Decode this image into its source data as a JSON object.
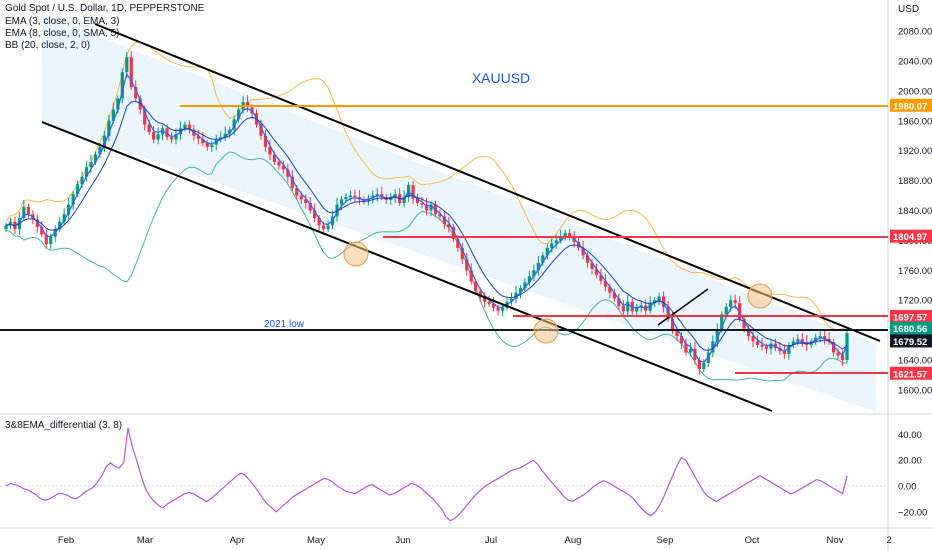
{
  "legend": {
    "symbol": "Gold Spot / U.S. Dollar, 1D, PEPPERSTONE",
    "ema3": "EMA (3, close, 0, EMA, 3)",
    "ema8": "EMA (8, close, 0, SMA, 5)",
    "bb": "BB (20, close, 2, 0)",
    "indicator": "3&8EMA_differential (3, 8)"
  },
  "chart_data": {
    "type": "candlestick",
    "title": "XAUUSD",
    "currency": "USD",
    "ylim": [
      1570,
      2120
    ],
    "y_ticks": [
      1600,
      1640,
      1680,
      1720,
      1760,
      1800,
      1840,
      1880,
      1920,
      1960,
      2000,
      2040,
      2080
    ],
    "y_tick_labels": [
      "1600.00",
      "1640.00",
      "1680.00",
      "1720.00",
      "1760.00",
      "1800.00",
      "1840.00",
      "1880.00",
      "1920.00",
      "1960.00",
      "2000.00",
      "2040.00",
      "2080.00"
    ],
    "x_tick_labels": [
      "Feb",
      "Mar",
      "Apr",
      "May",
      "Jun",
      "Jul",
      "Aug",
      "Sep",
      "Oct",
      "Nov",
      "2"
    ],
    "price_levels": [
      {
        "label": "1980.07",
        "value": 1980.07,
        "color": "#f59b00"
      },
      {
        "label": "1804.97",
        "value": 1804.97,
        "color": "#f23645"
      },
      {
        "label": "1697.57",
        "value": 1697.57,
        "color": "#f23645"
      },
      {
        "label": "1680.56",
        "value": 1680.56,
        "color": "#089981"
      },
      {
        "label": "1679.52",
        "value": 1679.52,
        "color": "#131722"
      },
      {
        "label": "1621.57",
        "value": 1621.57,
        "color": "#f23645"
      }
    ],
    "annotations": [
      "2021 low"
    ],
    "close_series": [
      1820,
      1825,
      1815,
      1830,
      1845,
      1835,
      1828,
      1818,
      1808,
      1795,
      1805,
      1815,
      1825,
      1835,
      1848,
      1862,
      1875,
      1885,
      1898,
      1905,
      1915,
      1925,
      1940,
      1960,
      1975,
      1990,
      2025,
      2045,
      2005,
      1990,
      1975,
      1955,
      1945,
      1935,
      1942,
      1950,
      1938,
      1935,
      1942,
      1950,
      1955,
      1948,
      1940,
      1936,
      1930,
      1925,
      1928,
      1935,
      1938,
      1943,
      1948,
      1962,
      1975,
      1985,
      1978,
      1970,
      1955,
      1940,
      1925,
      1915,
      1905,
      1900,
      1895,
      1885,
      1870,
      1860,
      1855,
      1850,
      1840,
      1830,
      1820,
      1815,
      1820,
      1832,
      1848,
      1855,
      1858,
      1860,
      1858,
      1855,
      1852,
      1856,
      1860,
      1862,
      1858,
      1854,
      1858,
      1862,
      1850,
      1858,
      1874,
      1856,
      1850,
      1848,
      1840,
      1848,
      1835,
      1832,
      1822,
      1818,
      1802,
      1790,
      1775,
      1760,
      1745,
      1732,
      1724,
      1718,
      1715,
      1710,
      1706,
      1710,
      1718,
      1722,
      1730,
      1736,
      1744,
      1752,
      1760,
      1770,
      1780,
      1790,
      1796,
      1800,
      1805,
      1810,
      1806,
      1798,
      1790,
      1780,
      1770,
      1762,
      1754,
      1746,
      1738,
      1730,
      1722,
      1712,
      1705,
      1718,
      1705,
      1710,
      1713,
      1706,
      1716,
      1720,
      1725,
      1711,
      1695,
      1680,
      1672,
      1662,
      1650,
      1655,
      1640,
      1628,
      1636,
      1650,
      1665,
      1680,
      1701,
      1711,
      1720,
      1716,
      1695,
      1682,
      1672,
      1665,
      1660,
      1658,
      1655,
      1662,
      1656,
      1652,
      1648,
      1660,
      1665,
      1668,
      1664,
      1660,
      1665,
      1670,
      1672,
      1668,
      1664,
      1650,
      1646,
      1640,
      1676
    ]
  },
  "indicator_data": {
    "name": "3&8EMA_differential (3, 8)",
    "ylim": [
      -30,
      50
    ],
    "y_ticks": [
      -20,
      0,
      20,
      40
    ],
    "y_tick_labels": [
      "−20.00",
      "0.00",
      "20.00",
      "40.00"
    ],
    "values": [
      0,
      2,
      1,
      0,
      -2,
      -3,
      -5,
      -7,
      -10,
      -11,
      -10,
      -8,
      -6,
      -6,
      -7,
      -9,
      -10,
      -8,
      -5,
      -3,
      -1,
      3,
      8,
      15,
      18,
      15,
      14,
      18,
      45,
      30,
      20,
      8,
      -2,
      -8,
      -12,
      -15,
      -17,
      -14,
      -12,
      -10,
      -8,
      -6,
      -5,
      -6,
      -8,
      -10,
      -12,
      -10,
      -7,
      -4,
      -1,
      2,
      5,
      8,
      10,
      8,
      4,
      0,
      -5,
      -10,
      -14,
      -17,
      -20,
      -17,
      -14,
      -11,
      -8,
      -6,
      -4,
      -2,
      0,
      2,
      4,
      6,
      5,
      3,
      0,
      -2,
      -4,
      -5,
      -6,
      -4,
      -2,
      0,
      1,
      -1,
      -3,
      -5,
      -7,
      -6,
      -4,
      -2,
      0,
      2,
      1,
      -1,
      -4,
      -7,
      -10,
      -14,
      -18,
      -24,
      -27,
      -25,
      -22,
      -18,
      -14,
      -10,
      -6,
      -3,
      0,
      2,
      4,
      6,
      8,
      10,
      12,
      13,
      14,
      16,
      18,
      20,
      17,
      12,
      8,
      4,
      0,
      -4,
      -8,
      -11,
      -12,
      -10,
      -8,
      -6,
      -3,
      0,
      2,
      4,
      3,
      1,
      -1,
      -3,
      -5,
      -7,
      -10,
      -14,
      -18,
      -21,
      -23,
      -20,
      -15,
      -8,
      0,
      8,
      16,
      22,
      20,
      14,
      8,
      2,
      -4,
      -8,
      -10,
      -12,
      -10,
      -8,
      -6,
      -4,
      -2,
      0,
      2,
      4,
      6,
      8,
      6,
      4,
      2,
      0,
      -2,
      -4,
      -6,
      -5,
      -3,
      -1,
      1,
      3,
      5,
      4,
      2,
      0,
      -2,
      -4,
      -6,
      8
    ]
  },
  "colors": {
    "up": "#089981",
    "down": "#f23645",
    "ema3": "#2962ff",
    "bb_upper": "#f7b94a",
    "bb_lower": "#45b3a3",
    "channel_fill": "#e3f2fd",
    "indicator_line": "#b05ad1",
    "level_orange": "#f59b00",
    "level_red": "#f23645",
    "low_line": "#131722",
    "circle": "#f5c48a",
    "title_color": "#1e55d6"
  }
}
